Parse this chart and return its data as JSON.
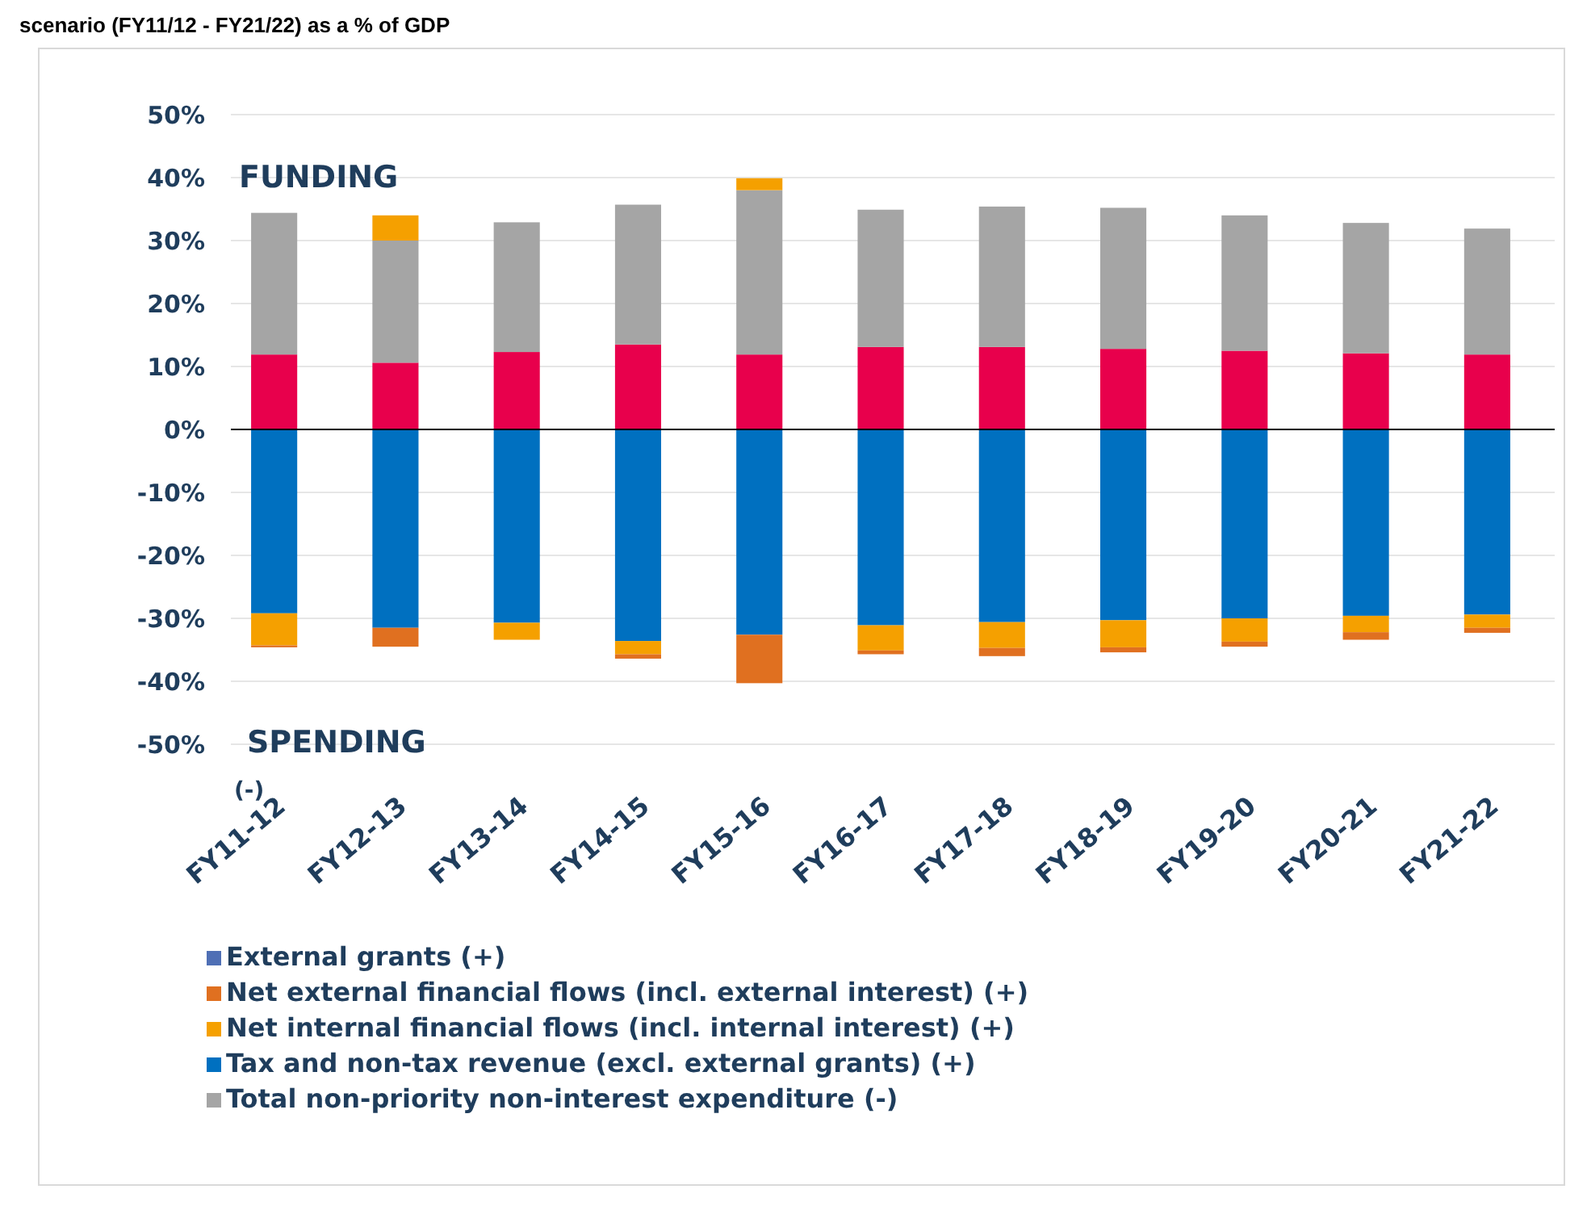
{
  "chart_data": {
    "type": "bar",
    "title": "scenario (FY11/12 - FY21/22) as a % of GDP",
    "stacked": true,
    "categories": [
      "FY11-12",
      "FY12-13",
      "FY13-14",
      "FY14-15",
      "FY15-16",
      "FY16-17",
      "FY17-18",
      "FY18-19",
      "FY19-20",
      "FY20-21",
      "FY21-22"
    ],
    "series": [
      {
        "color": "#e8004c",
        "values": [
          11.9,
          10.6,
          12.3,
          13.5,
          11.9,
          13.1,
          13.1,
          12.8,
          12.5,
          12.1,
          11.9
        ]
      },
      {
        "name": "Total non-priority non-interest expenditure (-)",
        "color": "#a5a5a5",
        "values": [
          22.5,
          19.4,
          20.6,
          22.2,
          26.1,
          21.8,
          22.3,
          22.4,
          21.5,
          20.7,
          20.0
        ]
      },
      {
        "name": "Tax and non-tax revenue (excl. external grants) (+)",
        "color": "#0070c0",
        "values": [
          -29.2,
          -31.5,
          -30.7,
          -33.6,
          -32.6,
          -31.1,
          -30.6,
          -30.3,
          -30.0,
          -29.6,
          -29.4
        ]
      },
      {
        "name": "Net internal financial flows (incl. internal interest) (+)",
        "color": "#f5a000",
        "values": [
          -5.1,
          4.0,
          -2.7,
          -2.1,
          1.9,
          -4.0,
          -4.1,
          -4.3,
          -3.7,
          -2.6,
          -2.1
        ]
      },
      {
        "name": "Net external financial flows (incl. external interest) (+)",
        "color": "#e07020",
        "values": [
          -0.3,
          -3.0,
          null,
          -0.7,
          -7.7,
          -0.6,
          -1.3,
          -0.8,
          -0.8,
          -1.2,
          -0.8
        ]
      },
      {
        "name": "External grants (+)",
        "color": "#4f6fb5",
        "values": [
          null,
          null,
          null,
          null,
          null,
          null,
          null,
          null,
          null,
          null,
          null
        ]
      }
    ],
    "ylim": [
      -50,
      50
    ],
    "yticks": [
      {
        "value": -50,
        "label": "-50%"
      },
      {
        "value": -40,
        "label": "-40%"
      },
      {
        "value": -30,
        "label": "-30%"
      },
      {
        "value": -20,
        "label": "-20%"
      },
      {
        "value": -10,
        "label": "-10%"
      },
      {
        "value": 0,
        "label": "0%"
      },
      {
        "value": 10,
        "label": "10%"
      },
      {
        "value": 20,
        "label": "20%"
      },
      {
        "value": 30,
        "label": "30%"
      },
      {
        "value": 40,
        "label": "40%"
      },
      {
        "value": 50,
        "label": "50%"
      }
    ],
    "grid": "y",
    "legend": "bottom",
    "annotations": [
      "FUNDING",
      "SPENDING",
      "(-)"
    ]
  }
}
